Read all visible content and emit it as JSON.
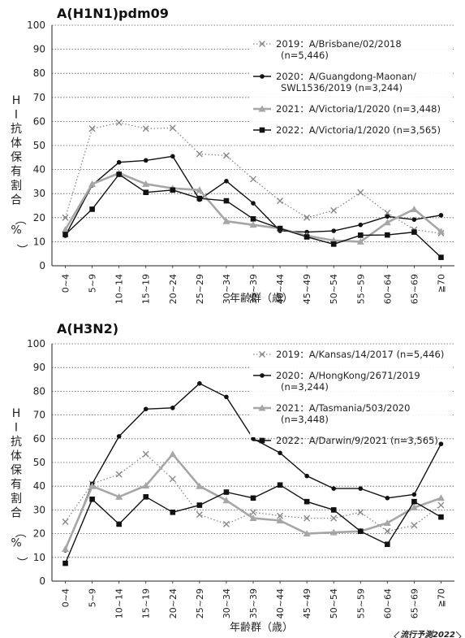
{
  "credit": "流行予測2022",
  "chart_data": [
    {
      "type": "line",
      "title": "A(H1N1)pdm09",
      "ylabel": "HI抗体保有割合（%）",
      "xlabel": "年齢群（歳）",
      "ylim": [
        0,
        100
      ],
      "yticks": [
        0,
        10,
        20,
        30,
        40,
        50,
        60,
        70,
        80,
        90,
        100
      ],
      "grid": "horizontal dotted",
      "legend": "top-right",
      "categories": [
        "0~4",
        "5~9",
        "10~14",
        "15~19",
        "20~24",
        "25~29",
        "30~34",
        "35~39",
        "40~44",
        "45~49",
        "50~54",
        "55~59",
        "60~64",
        "65~69",
        "≧70"
      ],
      "series": [
        {
          "label_lines": [
            "2019：A/Brisbane/02/2018",
            "(n=5,446)"
          ],
          "style": "dotted-x",
          "color": "#888888",
          "values": [
            20,
            57,
            59.5,
            57,
            57.3,
            46.5,
            45.8,
            36,
            27,
            20,
            23,
            30.5,
            22,
            15,
            13.5
          ]
        },
        {
          "label_lines": [
            "2020：A/Guangdong-Maonan/",
            "SWL1536/2019 (n=3,244)"
          ],
          "style": "black-circle",
          "color": "#111111",
          "values": [
            12.5,
            33.5,
            43,
            43.8,
            45.5,
            27.5,
            35.2,
            26,
            14.5,
            14,
            14.5,
            17,
            20.5,
            19.2,
            21
          ]
        },
        {
          "label_lines": [
            "2021：A/Victoria/1/2020 (n=3,448)"
          ],
          "style": "gray-triangle",
          "color": "#a6a6a6",
          "values": [
            15,
            34,
            38.5,
            34,
            32.2,
            31.5,
            18.5,
            17,
            15.5,
            12.5,
            10.5,
            10,
            18,
            23.5,
            14.2
          ]
        },
        {
          "label_lines": [
            "2022：A/Victoria/1/2020 (n=3,565)"
          ],
          "style": "black-square",
          "color": "#111111",
          "values": [
            13,
            23.5,
            38,
            30.5,
            31.5,
            28,
            27,
            19.5,
            15.5,
            12,
            9,
            12.7,
            12.8,
            14,
            3.5
          ]
        }
      ]
    },
    {
      "type": "line",
      "title": "A(H3N2)",
      "ylabel": "HI抗体保有割合（%）",
      "xlabel": "年齢群（歳）",
      "ylim": [
        0,
        100
      ],
      "yticks": [
        0,
        10,
        20,
        30,
        40,
        50,
        60,
        70,
        80,
        90,
        100
      ],
      "grid": "horizontal dotted",
      "legend": "top-right",
      "categories": [
        "0~4",
        "5~9",
        "10~14",
        "15~19",
        "20~24",
        "25~29",
        "30~34",
        "35~39",
        "40~44",
        "45~49",
        "50~54",
        "55~59",
        "60~64",
        "65~69",
        "≧70"
      ],
      "series": [
        {
          "label_lines": [
            "2019：A/Kansas/14/2017 (n=5,446)"
          ],
          "style": "dotted-x",
          "color": "#888888",
          "values": [
            25,
            41,
            45,
            53.5,
            43,
            28,
            24,
            29,
            27.5,
            26.5,
            26.5,
            29,
            21,
            23.5,
            32
          ]
        },
        {
          "label_lines": [
            "2020：A/HongKong/2671/2019",
            "(n=3,244)"
          ],
          "style": "black-circle",
          "color": "#111111",
          "values": [
            13,
            41,
            61,
            72.5,
            73,
            83.3,
            77.6,
            60,
            54,
            44.3,
            39,
            39,
            35,
            36.5,
            57.8
          ]
        },
        {
          "label_lines": [
            "2021：A/Tasmania/503/2020",
            "(n=3,448)"
          ],
          "style": "gray-triangle",
          "color": "#a6a6a6",
          "values": [
            13.5,
            40,
            35.5,
            40.2,
            53.5,
            40,
            34,
            26.5,
            25.5,
            20,
            20.5,
            21,
            24.5,
            31,
            35
          ]
        },
        {
          "label_lines": [
            "2022：A/Darwin/9/2021 (n=3,565)"
          ],
          "style": "black-square",
          "color": "#111111",
          "values": [
            7.5,
            34.5,
            24,
            35.5,
            29,
            32,
            37.5,
            35,
            40.5,
            33.5,
            30,
            21,
            15.5,
            33.5,
            27
          ]
        }
      ]
    }
  ]
}
